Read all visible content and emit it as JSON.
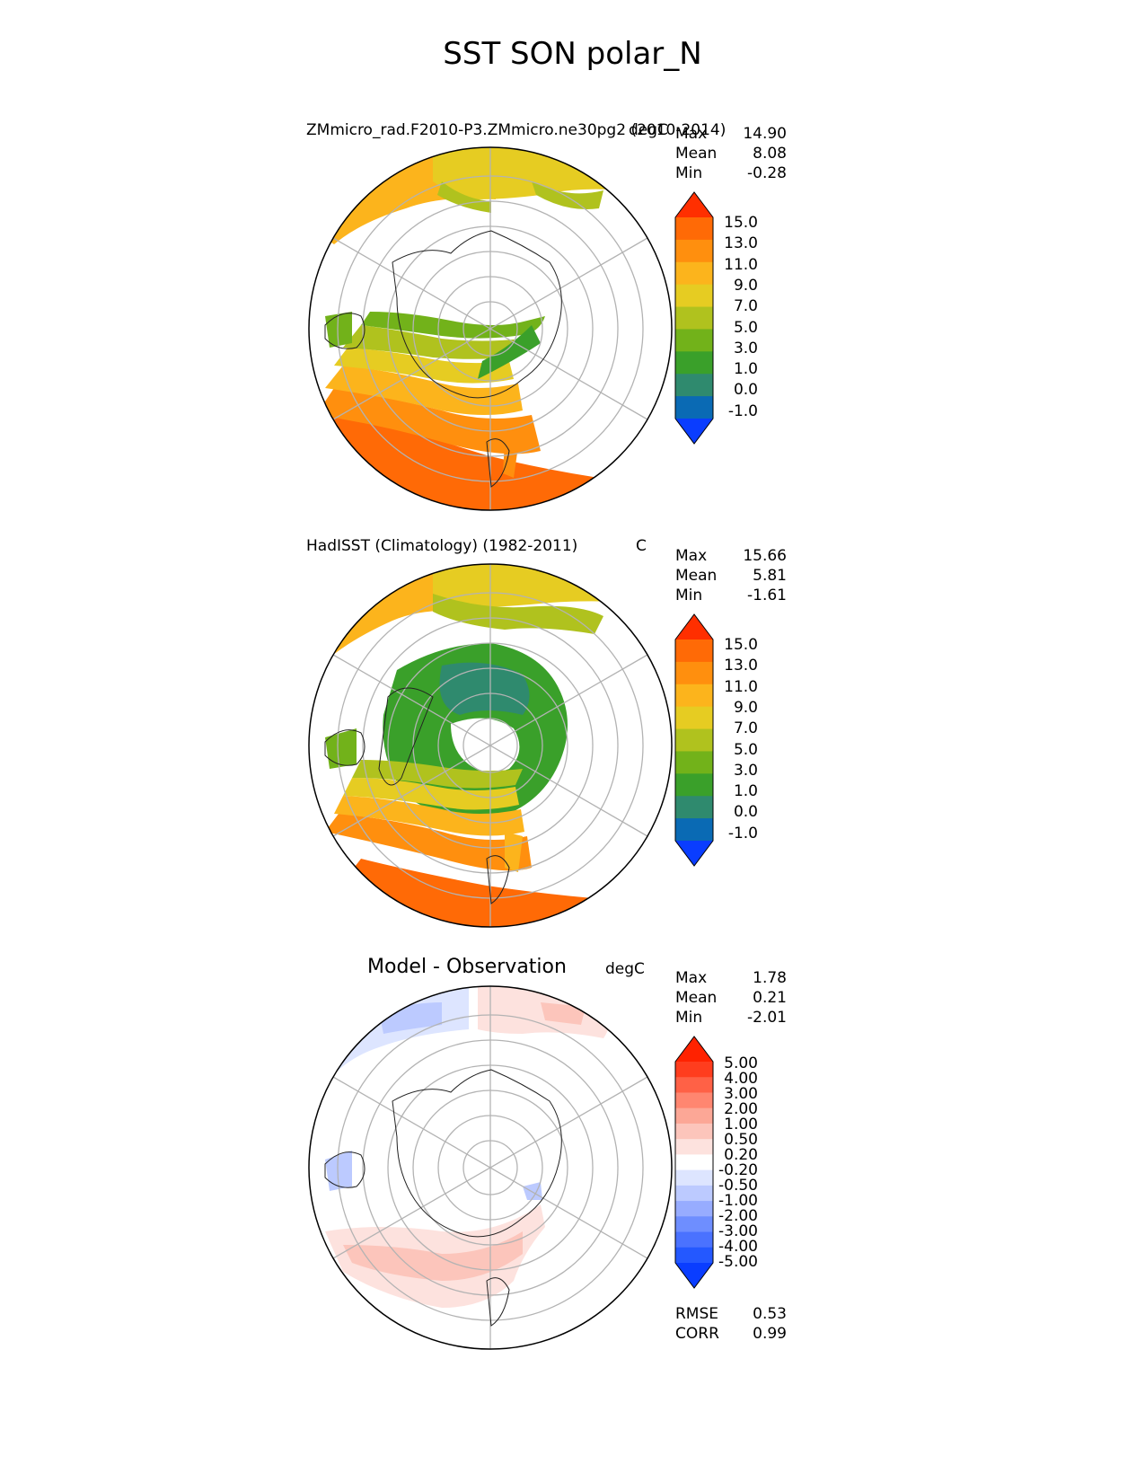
{
  "title": "SST SON polar_N",
  "palette": {
    "sst": [
      "#0a3dff",
      "#0a6ab4",
      "#2f8a6e",
      "#3aa02a",
      "#72b21a",
      "#b0c21e",
      "#e6cc22",
      "#fcb41c",
      "#ff8f0e",
      "#ff6a06",
      "#ff2f00"
    ],
    "diff": [
      "#0a3dff",
      "#2458ff",
      "#4a72ff",
      "#6e8eff",
      "#97acff",
      "#bccaff",
      "#dde5ff",
      "#ffffff",
      "#fde2de",
      "#fcc5bb",
      "#fca796",
      "#ff8670",
      "#ff6146",
      "#ff3d1e",
      "#ff2200"
    ],
    "land": "#ffffff",
    "grid": "#b3b3b3"
  },
  "panels": [
    {
      "id": "model",
      "title": "ZMmicro_rad.F2010-P3.ZMmicro.ne30pg2 (2010-2014)",
      "units": "degC",
      "stats": [
        {
          "label": "Max",
          "value": "14.90"
        },
        {
          "label": "Mean",
          "value": "8.08"
        },
        {
          "label": "Min",
          "value": "-0.28"
        }
      ],
      "colorbar": {
        "levels": [
          "15.0",
          "13.0",
          "11.0",
          "9.0",
          "7.0",
          "5.0",
          "3.0",
          "1.0",
          "0.0",
          "-1.0"
        ]
      }
    },
    {
      "id": "obs",
      "title": "HadISST (Climatology) (1982-2011)",
      "units": "C",
      "stats": [
        {
          "label": "Max",
          "value": "15.66"
        },
        {
          "label": "Mean",
          "value": "5.81"
        },
        {
          "label": "Min",
          "value": "-1.61"
        }
      ],
      "colorbar": {
        "levels": [
          "15.0",
          "13.0",
          "11.0",
          "9.0",
          "7.0",
          "5.0",
          "3.0",
          "1.0",
          "0.0",
          "-1.0"
        ]
      }
    },
    {
      "id": "diff",
      "title": "Model - Observation",
      "units": "degC",
      "stats": [
        {
          "label": "Max",
          "value": "1.78"
        },
        {
          "label": "Mean",
          "value": "0.21"
        },
        {
          "label": "Min",
          "value": "-2.01"
        }
      ],
      "colorbar": {
        "levels": [
          "5.00",
          "4.00",
          "3.00",
          "2.00",
          "1.00",
          "0.50",
          "0.20",
          "-0.20",
          "-0.50",
          "-1.00",
          "-2.00",
          "-3.00",
          "-4.00",
          "-5.00"
        ]
      },
      "metrics": [
        {
          "label": "RMSE",
          "value": "0.53"
        },
        {
          "label": "CORR",
          "value": "0.99"
        }
      ]
    }
  ]
}
